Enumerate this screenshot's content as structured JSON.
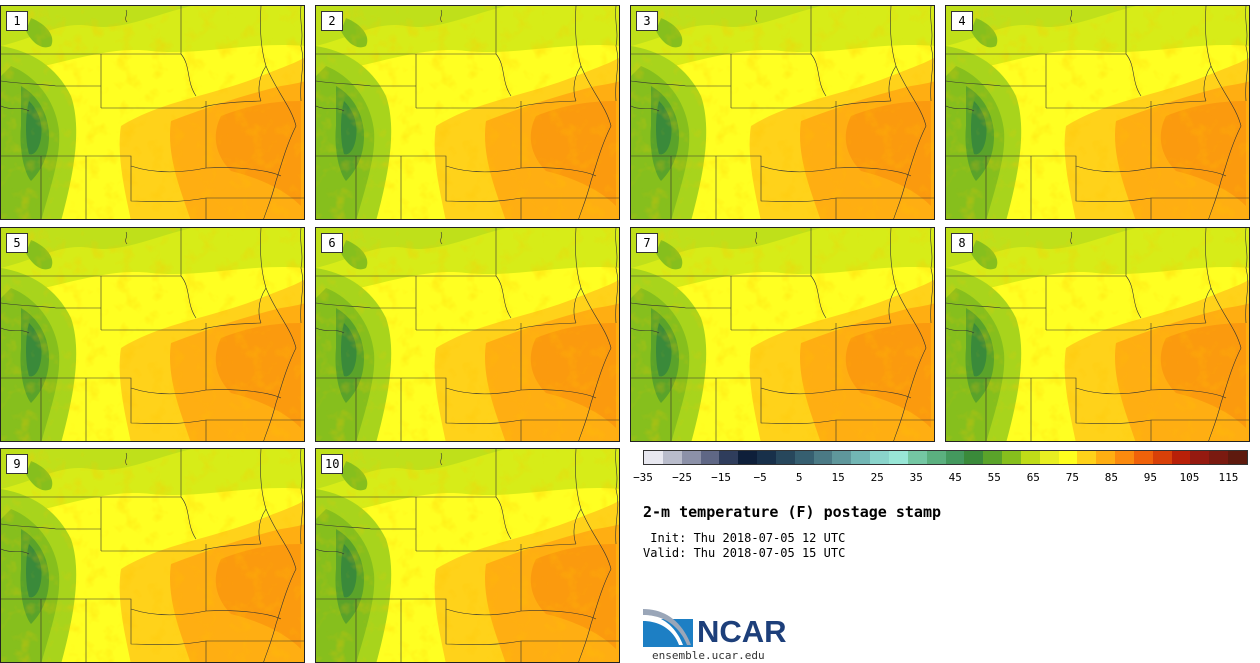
{
  "title": "2-m temperature (F) postage stamp",
  "init": " Init: Thu 2018-07-05 12 UTC",
  "valid": "Valid: Thu 2018-07-05 15 UTC",
  "panels": [
    "1",
    "2",
    "3",
    "4",
    "5",
    "6",
    "7",
    "8",
    "9",
    "10"
  ],
  "colorbar": {
    "colors": [
      "#e8e8f0",
      "#b9bccb",
      "#8c91a8",
      "#5f6785",
      "#2f3d5c",
      "#0e1f3a",
      "#18304a",
      "#27475c",
      "#365f70",
      "#4b7a85",
      "#5f979b",
      "#72b6b4",
      "#8ad4cb",
      "#98e6d6",
      "#74c7a3",
      "#5bb07f",
      "#44995e",
      "#3a8a3a",
      "#5aa32a",
      "#86bf1d",
      "#bfdc18",
      "#e8ef22",
      "#ffff1e",
      "#ffd21a",
      "#ffae12",
      "#fb8a0e",
      "#f0620a",
      "#d84008",
      "#b82008",
      "#951a10",
      "#7a1a10",
      "#5e1a0e"
    ],
    "ticks": [
      "-35",
      "-25",
      "-15",
      "-5",
      "5",
      "15",
      "25",
      "35",
      "45",
      "55",
      "65",
      "75",
      "85",
      "95",
      "105",
      "115"
    ]
  },
  "logo": {
    "name": "NCAR",
    "url": "ensemble.ucar.edu"
  }
}
